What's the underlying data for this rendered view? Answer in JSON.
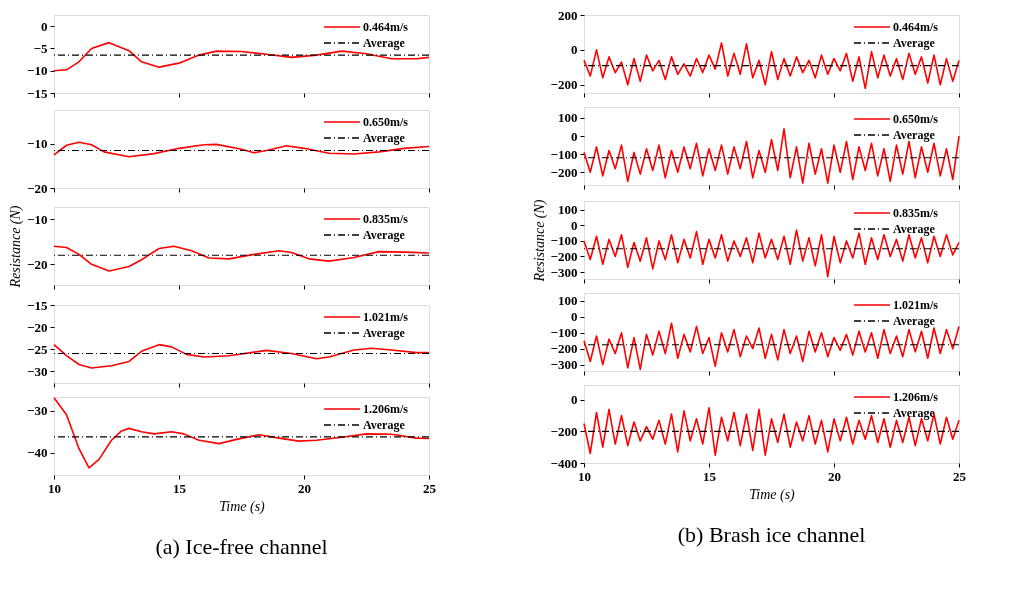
{
  "chart_data": [
    {
      "type": "line",
      "x": [
        10,
        10.5,
        11,
        11.5,
        12.2,
        13,
        13.5,
        14.2,
        15,
        15.8,
        16.5,
        17.5,
        18.5,
        19.5,
        20.5,
        21.5,
        22.5,
        23.5,
        24.5,
        25
      ],
      "series": [
        {
          "name": "0.464m/s",
          "color": "#ff0000",
          "values": [
            -10,
            -9.8,
            -8,
            -5,
            -3.7,
            -5.5,
            -8,
            -9.2,
            -8.3,
            -6.5,
            -5.6,
            -5.7,
            -6.3,
            -7,
            -6.5,
            -5.6,
            -6.2,
            -7.3,
            -7.3,
            -7
          ]
        }
      ],
      "ref_lines": [
        {
          "axis": "y",
          "value": -6.5,
          "label": "Average",
          "color": "#000000"
        }
      ],
      "xlim": [
        10,
        25
      ],
      "xticks": [
        10,
        15,
        20,
        25
      ],
      "ylim": [
        -15,
        2.5
      ],
      "yticks": [
        -15,
        -10,
        -5,
        0
      ],
      "tick_labels": "y",
      "legend": "top right"
    },
    {
      "type": "line",
      "x": [
        10,
        10.5,
        11,
        11.5,
        12,
        13,
        14,
        15,
        16,
        16.5,
        17.5,
        18,
        18.5,
        19.3,
        20,
        21,
        22,
        23,
        24,
        25
      ],
      "series": [
        {
          "name": "0.650m/s",
          "color": "#ff0000",
          "values": [
            -12.5,
            -10.3,
            -9.6,
            -10.2,
            -11.8,
            -12.9,
            -12.2,
            -11,
            -10.2,
            -10.1,
            -11.2,
            -12,
            -11.5,
            -10.4,
            -11,
            -12.1,
            -12.3,
            -11.8,
            -11,
            -10.6
          ]
        }
      ],
      "ref_lines": [
        {
          "axis": "y",
          "value": -11.5,
          "label": "Average",
          "color": "#000000"
        }
      ],
      "xlim": [
        10,
        25
      ],
      "xticks": [
        10,
        15,
        20,
        25
      ],
      "ylim": [
        -20,
        -2.3
      ],
      "yticks": [
        -20,
        -10
      ],
      "tick_labels": "y",
      "legend": "top right"
    },
    {
      "type": "line",
      "ylabel": "Resistance (N)",
      "x": [
        10,
        10.5,
        11,
        11.5,
        12.2,
        13,
        13.5,
        14.2,
        14.8,
        15.5,
        16.2,
        17,
        18,
        19,
        19.5,
        20.2,
        21,
        22,
        23,
        24,
        25
      ],
      "series": [
        {
          "name": "0.835m/s",
          "color": "#ff0000",
          "values": [
            -16,
            -16.3,
            -17.8,
            -20,
            -21.5,
            -20.5,
            -19,
            -16.5,
            -16,
            -17,
            -18.6,
            -18.8,
            -17.8,
            -17,
            -17.4,
            -18.8,
            -19.3,
            -18.5,
            -17.2,
            -17.3,
            -17.5
          ]
        }
      ],
      "ref_lines": [
        {
          "axis": "y",
          "value": -18,
          "label": "Average",
          "color": "#000000"
        }
      ],
      "xlim": [
        10,
        25
      ],
      "xticks": [
        10,
        15,
        20,
        25
      ],
      "ylim": [
        -24.6,
        -7.3
      ],
      "yticks": [
        -20,
        -10
      ],
      "tick_labels": "y",
      "legend": "top right"
    },
    {
      "type": "line",
      "x": [
        10,
        10.5,
        11,
        11.5,
        12.3,
        13,
        13.5,
        14.2,
        14.7,
        15.3,
        16,
        17,
        18.5,
        19.5,
        20.5,
        21,
        22,
        22.7,
        23.5,
        24.5,
        25
      ],
      "series": [
        {
          "name": "1.021m/s",
          "color": "#ff0000",
          "values": [
            -24,
            -26.5,
            -28.5,
            -29.3,
            -28.8,
            -27.8,
            -25.5,
            -24,
            -24.5,
            -26.2,
            -26.8,
            -26.5,
            -25.3,
            -26,
            -27.2,
            -26.8,
            -25.2,
            -24.8,
            -25.2,
            -25.8,
            -25.8
          ]
        }
      ],
      "ref_lines": [
        {
          "axis": "y",
          "value": -26,
          "label": "Average",
          "color": "#000000"
        }
      ],
      "xlim": [
        10,
        25
      ],
      "xticks": [
        10,
        15,
        20,
        25
      ],
      "ylim": [
        -32.7,
        -15
      ],
      "yticks": [
        -30,
        -25,
        -20,
        -15
      ],
      "tick_labels": "y",
      "legend": "top right"
    },
    {
      "type": "line",
      "xlabel": "Time (s)",
      "annotations": [
        "(a) Ice-free  channel"
      ],
      "x": [
        10,
        10.5,
        11,
        11.4,
        11.8,
        12.3,
        12.7,
        13,
        13.5,
        14,
        14.7,
        15.2,
        15.8,
        16.6,
        17.3,
        18.2,
        19,
        19.8,
        20.5,
        21.5,
        22.5,
        23.5,
        24.5,
        25
      ],
      "series": [
        {
          "name": "1.206m/s",
          "color": "#ff0000",
          "values": [
            -27,
            -31,
            -39,
            -43.5,
            -41.5,
            -37,
            -34.8,
            -34.2,
            -35,
            -35.5,
            -35,
            -35.5,
            -37,
            -37.8,
            -36.8,
            -35.7,
            -36.5,
            -37.2,
            -37,
            -36.3,
            -35.5,
            -35.6,
            -36.5,
            -36.6
          ]
        }
      ],
      "ref_lines": [
        {
          "axis": "y",
          "value": -36.2,
          "label": "Average",
          "color": "#000000"
        }
      ],
      "xlim": [
        10,
        25
      ],
      "xticks": [
        10,
        15,
        20,
        25
      ],
      "ylim": [
        -45.2,
        -26.8
      ],
      "yticks": [
        -40,
        -30
      ],
      "legend": "top right"
    },
    {
      "type": "line",
      "x": [
        10,
        10.25,
        10.5,
        10.75,
        11,
        11.25,
        11.5,
        11.75,
        12,
        12.25,
        12.5,
        12.75,
        13,
        13.25,
        13.5,
        13.75,
        14,
        14.25,
        14.5,
        14.75,
        15,
        15.25,
        15.5,
        15.75,
        16,
        16.25,
        16.5,
        16.75,
        17,
        17.25,
        17.5,
        17.75,
        18,
        18.25,
        18.5,
        18.75,
        19,
        19.25,
        19.5,
        19.75,
        20,
        20.25,
        20.5,
        20.75,
        21,
        21.25,
        21.5,
        21.75,
        22,
        22.25,
        22.5,
        22.75,
        23,
        23.25,
        23.5,
        23.75,
        24,
        24.25,
        24.5,
        24.75,
        25
      ],
      "series": [
        {
          "name": "0.464m/s",
          "color": "#ff0000",
          "values": [
            -60,
            -150,
            0,
            -160,
            -40,
            -130,
            -70,
            -200,
            -50,
            -180,
            -30,
            -120,
            -60,
            -170,
            -40,
            -140,
            -80,
            -150,
            -50,
            -130,
            -30,
            -110,
            40,
            -150,
            -20,
            -140,
            35,
            -160,
            -60,
            -200,
            -10,
            -170,
            -50,
            -150,
            -40,
            -130,
            -60,
            -160,
            -30,
            -140,
            -50,
            -120,
            -20,
            -180,
            -40,
            -220,
            -10,
            -160,
            -30,
            -150,
            -50,
            -170,
            -20,
            -140,
            -40,
            -190,
            -30,
            -200,
            -50,
            -180,
            -60
          ]
        }
      ],
      "ref_lines": [
        {
          "axis": "y",
          "value": -90,
          "label": "Average",
          "color": "#000000"
        }
      ],
      "xlim": [
        10,
        25
      ],
      "xticks": [
        10,
        15,
        20,
        25
      ],
      "ylim": [
        -247,
        200
      ],
      "yticks": [
        -200,
        0,
        200
      ],
      "tick_labels": "y",
      "legend": "top right"
    },
    {
      "type": "line",
      "x": [
        10,
        10.25,
        10.5,
        10.75,
        11,
        11.25,
        11.5,
        11.75,
        12,
        12.25,
        12.5,
        12.75,
        13,
        13.25,
        13.5,
        13.75,
        14,
        14.25,
        14.5,
        14.75,
        15,
        15.25,
        15.5,
        15.75,
        16,
        16.25,
        16.5,
        16.75,
        17,
        17.25,
        17.5,
        17.75,
        18,
        18.25,
        18.5,
        18.75,
        19,
        19.25,
        19.5,
        19.75,
        20,
        20.25,
        20.5,
        20.75,
        21,
        21.25,
        21.5,
        21.75,
        22,
        22.25,
        22.5,
        22.75,
        23,
        23.25,
        23.5,
        23.75,
        24,
        24.25,
        24.5,
        24.75,
        25
      ],
      "series": [
        {
          "name": "0.650m/s",
          "color": "#ff0000",
          "values": [
            -90,
            -200,
            -60,
            -220,
            -80,
            -180,
            -50,
            -250,
            -90,
            -210,
            -70,
            -190,
            -50,
            -230,
            -80,
            -200,
            -60,
            -180,
            -40,
            -220,
            -70,
            -190,
            -50,
            -210,
            -60,
            -180,
            -30,
            -230,
            -80,
            -200,
            -20,
            -190,
            40,
            -230,
            -60,
            -260,
            -40,
            -210,
            -70,
            -260,
            -50,
            -200,
            -30,
            -240,
            -60,
            -190,
            -40,
            -220,
            -70,
            -250,
            -50,
            -210,
            -30,
            -230,
            -60,
            -200,
            -40,
            -220,
            -70,
            -240,
            0
          ]
        }
      ],
      "ref_lines": [
        {
          "axis": "y",
          "value": -120,
          "label": "Average",
          "color": "#000000"
        }
      ],
      "xlim": [
        10,
        25
      ],
      "xticks": [
        10,
        15,
        20,
        25
      ],
      "ylim": [
        -270,
        160
      ],
      "yticks": [
        -200,
        -100,
        0,
        100
      ],
      "tick_labels": "y",
      "legend": "top right"
    },
    {
      "type": "line",
      "ylabel": "Resistance (N)",
      "x": [
        10,
        10.25,
        10.5,
        10.75,
        11,
        11.25,
        11.5,
        11.75,
        12,
        12.25,
        12.5,
        12.75,
        13,
        13.25,
        13.5,
        13.75,
        14,
        14.25,
        14.5,
        14.75,
        15,
        15.25,
        15.5,
        15.75,
        16,
        16.25,
        16.5,
        16.75,
        17,
        17.25,
        17.5,
        17.75,
        18,
        18.25,
        18.5,
        18.75,
        19,
        19.25,
        19.5,
        19.75,
        20,
        20.25,
        20.5,
        20.75,
        21,
        21.25,
        21.5,
        21.75,
        22,
        22.25,
        22.5,
        22.75,
        23,
        23.25,
        23.5,
        23.75,
        24,
        24.25,
        24.5,
        24.75,
        25
      ],
      "series": [
        {
          "name": "0.835m/s",
          "color": "#ff0000",
          "values": [
            -100,
            -220,
            -70,
            -250,
            -90,
            -200,
            -60,
            -270,
            -110,
            -230,
            -80,
            -280,
            -100,
            -220,
            -60,
            -240,
            -90,
            -210,
            -40,
            -250,
            -90,
            -210,
            -60,
            -230,
            -100,
            -200,
            -80,
            -240,
            -50,
            -210,
            -90,
            -220,
            -70,
            -250,
            -30,
            -230,
            -80,
            -260,
            -60,
            -330,
            -70,
            -240,
            -100,
            -210,
            -50,
            -250,
            -80,
            -220,
            -60,
            -200,
            -90,
            -230,
            -60,
            -210,
            -80,
            -240,
            -70,
            -200,
            -60,
            -190,
            -110
          ]
        }
      ],
      "ref_lines": [
        {
          "axis": "y",
          "value": -150,
          "label": "Average",
          "color": "#000000"
        }
      ],
      "xlim": [
        10,
        25
      ],
      "xticks": [
        10,
        15,
        20,
        25
      ],
      "ylim": [
        -345,
        157
      ],
      "yticks": [
        -300,
        -200,
        -100,
        0,
        100
      ],
      "tick_labels": "y",
      "legend": "top right"
    },
    {
      "type": "line",
      "x": [
        10,
        10.25,
        10.5,
        10.75,
        11,
        11.25,
        11.5,
        11.75,
        12,
        12.25,
        12.5,
        12.75,
        13,
        13.25,
        13.5,
        13.75,
        14,
        14.25,
        14.5,
        14.75,
        15,
        15.25,
        15.5,
        15.75,
        16,
        16.25,
        16.5,
        16.75,
        17,
        17.25,
        17.5,
        17.75,
        18,
        18.25,
        18.5,
        18.75,
        19,
        19.25,
        19.5,
        19.75,
        20,
        20.25,
        20.5,
        20.75,
        21,
        21.25,
        21.5,
        21.75,
        22,
        22.25,
        22.5,
        22.75,
        23,
        23.25,
        23.5,
        23.75,
        24,
        24.25,
        24.5,
        24.75,
        25
      ],
      "series": [
        {
          "name": "1.021m/s",
          "color": "#ff0000",
          "values": [
            -150,
            -280,
            -120,
            -300,
            -140,
            -230,
            -100,
            -320,
            -130,
            -330,
            -110,
            -240,
            -90,
            -230,
            -40,
            -260,
            -110,
            -220,
            -60,
            -230,
            -130,
            -310,
            -100,
            -220,
            -80,
            -250,
            -120,
            -200,
            -70,
            -260,
            -110,
            -270,
            -80,
            -230,
            -120,
            -280,
            -90,
            -220,
            -100,
            -250,
            -130,
            -210,
            -110,
            -240,
            -90,
            -220,
            -100,
            -260,
            -80,
            -230,
            -120,
            -250,
            -80,
            -220,
            -90,
            -260,
            -70,
            -230,
            -80,
            -200,
            -60
          ]
        }
      ],
      "ref_lines": [
        {
          "axis": "y",
          "value": -175,
          "label": "Average",
          "color": "#000000"
        }
      ],
      "xlim": [
        10,
        25
      ],
      "xticks": [
        10,
        15,
        20,
        25
      ],
      "ylim": [
        -340,
        150
      ],
      "yticks": [
        -300,
        -200,
        -100,
        0,
        100
      ],
      "tick_labels": "y",
      "legend": "top right"
    },
    {
      "type": "line",
      "xlabel": "Time (s)",
      "annotations": [
        "(b) Brash  ice  channel"
      ],
      "x": [
        10,
        10.25,
        10.5,
        10.75,
        11,
        11.25,
        11.5,
        11.75,
        12,
        12.25,
        12.5,
        12.75,
        13,
        13.25,
        13.5,
        13.75,
        14,
        14.25,
        14.5,
        14.75,
        15,
        15.25,
        15.5,
        15.75,
        16,
        16.25,
        16.5,
        16.75,
        17,
        17.25,
        17.5,
        17.75,
        18,
        18.25,
        18.5,
        18.75,
        19,
        19.25,
        19.5,
        19.75,
        20,
        20.25,
        20.5,
        20.75,
        21,
        21.25,
        21.5,
        21.75,
        22,
        22.25,
        22.5,
        22.75,
        23,
        23.25,
        23.5,
        23.75,
        24,
        24.25,
        24.5,
        24.75,
        25
      ],
      "series": [
        {
          "name": "1.206m/s",
          "color": "#ff0000",
          "values": [
            -150,
            -340,
            -80,
            -300,
            -60,
            -280,
            -100,
            -290,
            -140,
            -260,
            -170,
            -250,
            -130,
            -280,
            -90,
            -330,
            -70,
            -260,
            -120,
            -280,
            -50,
            -350,
            -110,
            -260,
            -80,
            -290,
            -90,
            -320,
            -60,
            -350,
            -120,
            -270,
            -90,
            -300,
            -140,
            -260,
            -100,
            -280,
            -130,
            -330,
            -120,
            -260,
            -110,
            -280,
            -130,
            -250,
            -100,
            -270,
            -120,
            -300,
            -130,
            -270,
            -110,
            -290,
            -120,
            -260,
            -90,
            -280,
            -110,
            -250,
            -130
          ]
        }
      ],
      "ref_lines": [
        {
          "axis": "y",
          "value": -200,
          "label": "Average",
          "color": "#000000"
        }
      ],
      "xlim": [
        10,
        25
      ],
      "xticks": [
        10,
        15,
        20,
        25
      ],
      "ylim": [
        -400,
        94
      ],
      "yticks": [
        -400,
        -200,
        0
      ],
      "legend": "top right"
    }
  ]
}
